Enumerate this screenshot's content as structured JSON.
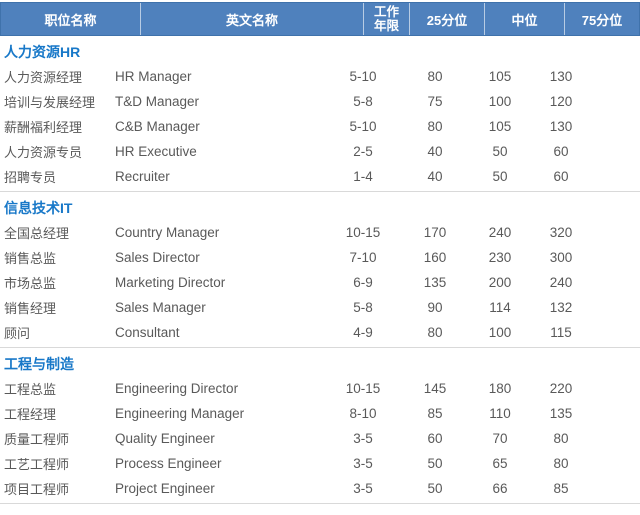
{
  "header": {
    "columns": [
      "职位名称",
      "英文名称",
      "工作年限",
      "25分位",
      "中位",
      "75分位"
    ]
  },
  "colors": {
    "header_bg": "#4f81bd",
    "header_border": "#3f72ab",
    "header_cell_divider": "#b8cce4",
    "header_text": "#ffffff",
    "section_title_text": "#1878c8",
    "data_text": "#595959",
    "section_divider": "#d9d9d9"
  },
  "sections": [
    {
      "title": "人力资源HR",
      "rows": [
        [
          "人力资源经理",
          "HR Manager",
          "5-10",
          "80",
          "105",
          "130"
        ],
        [
          "培训与发展经理",
          "T&D Manager",
          "5-8",
          "75",
          "100",
          "120"
        ],
        [
          "薪酬福利经理",
          "C&B Manager",
          "5-10",
          "80",
          "105",
          "130"
        ],
        [
          "人力资源专员",
          "HR Executive",
          "2-5",
          "40",
          "50",
          "60"
        ],
        [
          "招聘专员",
          "Recruiter",
          "1-4",
          "40",
          "50",
          "60"
        ]
      ]
    },
    {
      "title": "信息技术IT",
      "rows": [
        [
          "全国总经理",
          "Country Manager",
          "10-15",
          "170",
          "240",
          "320"
        ],
        [
          "销售总监",
          "Sales Director",
          "7-10",
          "160",
          "230",
          "300"
        ],
        [
          "市场总监",
          "Marketing Director",
          "6-9",
          "135",
          "200",
          "240"
        ],
        [
          "销售经理",
          "Sales Manager",
          "5-8",
          "90",
          "114",
          "132"
        ],
        [
          "顾问",
          "Consultant",
          "4-9",
          "80",
          "100",
          "115"
        ]
      ]
    },
    {
      "title": "工程与制造",
      "rows": [
        [
          "工程总监",
          "Engineering Director",
          "10-15",
          "145",
          "180",
          "220"
        ],
        [
          "工程经理",
          "Engineering Manager",
          "8-10",
          "85",
          "110",
          "135"
        ],
        [
          "质量工程师",
          "Quality Engineer",
          "3-5",
          "60",
          "70",
          "80"
        ],
        [
          "工艺工程师",
          "Process Engineer",
          "3-5",
          "50",
          "65",
          "80"
        ],
        [
          "项目工程师",
          "Project Engineer",
          "3-5",
          "50",
          "66",
          "85"
        ]
      ]
    }
  ]
}
